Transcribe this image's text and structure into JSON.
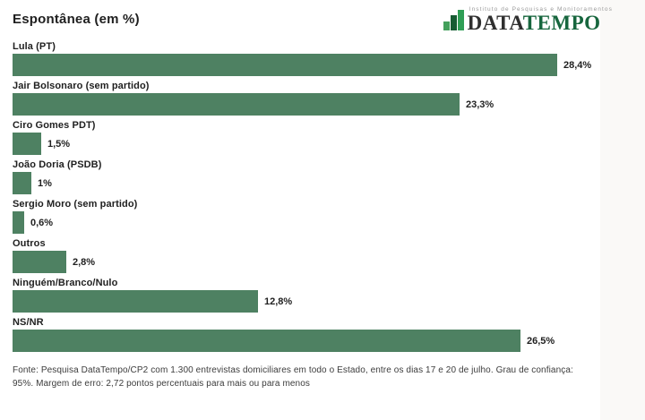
{
  "header": {
    "title": "Espontânea (em %)"
  },
  "logo": {
    "tagline": "Instituto de Pesquisas e Monitoramentos",
    "name_dark": "DATA",
    "name_green": "TEMPO"
  },
  "chart_data": {
    "type": "bar",
    "orientation": "horizontal",
    "title": "Espontânea (em %)",
    "categories": [
      "Lula (PT)",
      "Jair Bolsonaro (sem partido)",
      "Ciro Gomes PDT)",
      "João Doria (PSDB)",
      "Sergio Moro (sem partido)",
      "Outros",
      "Ninguém/Branco/Nulo",
      "NS/NR"
    ],
    "values": [
      28.4,
      23.3,
      1.5,
      1.0,
      0.6,
      2.8,
      12.8,
      26.5
    ],
    "value_labels": [
      "28,4%",
      "23,3%",
      "1,5%",
      "1%",
      "0,6%",
      "2,8%",
      "12,8%",
      "26,5%"
    ],
    "bar_color": "#4e8162",
    "xlim": [
      0,
      30
    ],
    "grid": false,
    "legend": "none"
  },
  "footer": {
    "source": "Fonte: Pesquisa DataTempo/CP2 com 1.300 entrevistas domiciliares em todo o Estado, entre os dias 17 e 20 de julho. Grau de confiança: 95%. Margem de erro: 2,72 pontos percentuais para mais ou para menos"
  },
  "colors": {
    "bar": "#4e8162",
    "logo_green": "#17663e",
    "logo_dark": "#2f2f2f",
    "icon_light_green": "#44a05c",
    "icon_dark_green": "#175c33",
    "icon_mid_green": "#2f9e55"
  }
}
